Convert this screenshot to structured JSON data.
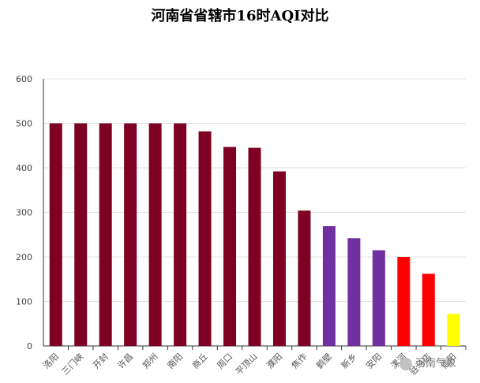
{
  "chart_data": {
    "type": "bar",
    "title": "河南省省辖市16时AQI对比",
    "xlabel": "",
    "ylabel": "",
    "ylim": [
      0,
      600
    ],
    "yticks": [
      0,
      100,
      200,
      300,
      400,
      500,
      600
    ],
    "grid": true,
    "categories": [
      "洛阳",
      "三门峡",
      "开封",
      "许昌",
      "郑州",
      "南阳",
      "商丘",
      "周口",
      "平顶山",
      "濮阳",
      "焦作",
      "鹤壁",
      "新乡",
      "安阳",
      "漯河",
      "驻马店",
      "信阳"
    ],
    "values": [
      500,
      500,
      500,
      500,
      500,
      500,
      482,
      447,
      445,
      392,
      304,
      269,
      242,
      215,
      200,
      162,
      72
    ],
    "colors": [
      "#7e0023",
      "#7e0023",
      "#7e0023",
      "#7e0023",
      "#7e0023",
      "#7e0023",
      "#7e0023",
      "#7e0023",
      "#7e0023",
      "#7e0023",
      "#7e0023",
      "#7030a0",
      "#7030a0",
      "#7030a0",
      "#ff0000",
      "#ff0000",
      "#ffff00"
    ]
  },
  "watermark": "河南气象",
  "watermark_icon": "wechat-icon"
}
